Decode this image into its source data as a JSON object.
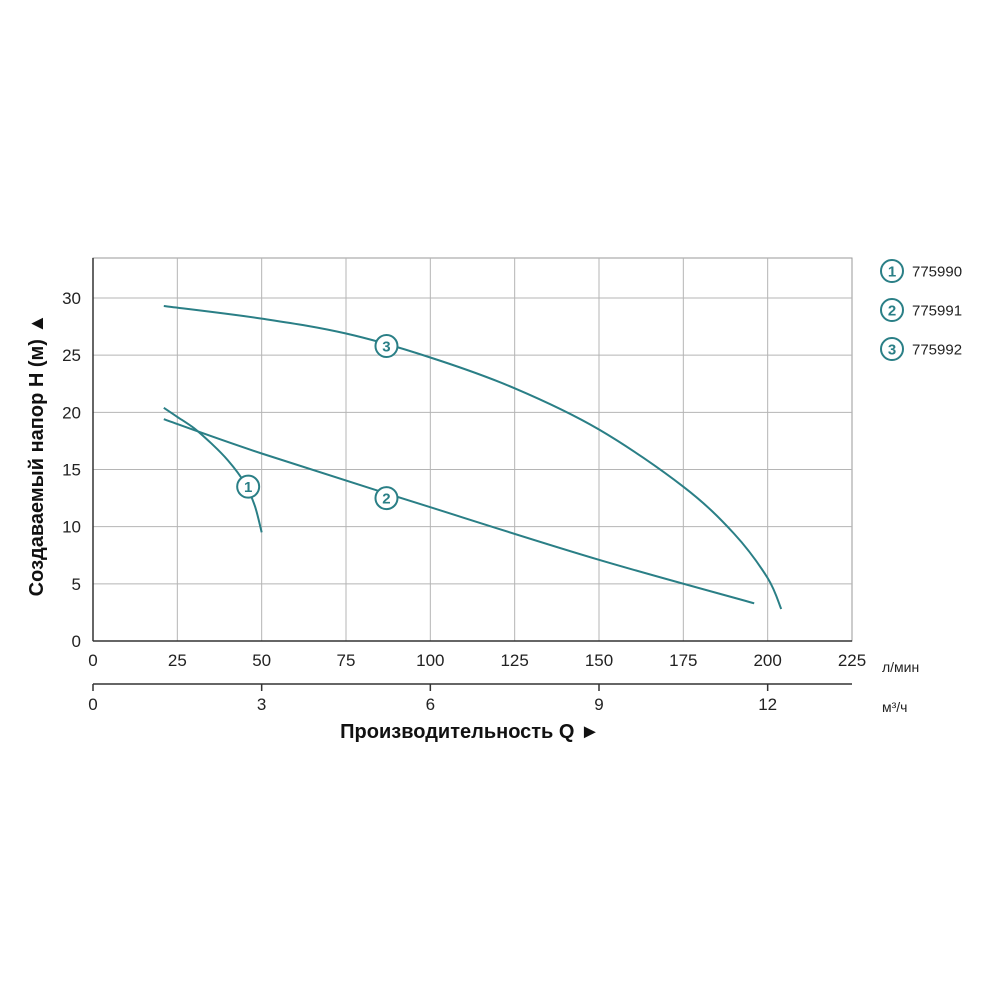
{
  "chart_data": {
    "type": "line",
    "ylabel": "Создаваемый напор H (м) ▲",
    "xlabel": "Производительность Q ►",
    "x_primary": {
      "unit": "л/мин",
      "range": [
        0,
        225
      ],
      "ticks": [
        0,
        25,
        50,
        75,
        100,
        125,
        150,
        175,
        200,
        225
      ]
    },
    "x_secondary": {
      "unit": "м³/ч",
      "range": [
        0,
        13.5
      ],
      "ticks": [
        0,
        3,
        6,
        9,
        12
      ]
    },
    "y": {
      "range": [
        0,
        33.5
      ],
      "ticks": [
        0,
        5,
        10,
        15,
        20,
        25,
        30
      ]
    },
    "grid": true,
    "legend_position": "right",
    "line_color": "#2a7f86",
    "series": [
      {
        "name": "775990",
        "marker": "1",
        "x": [
          21,
          25,
          30,
          35,
          40,
          45,
          48,
          50
        ],
        "y": [
          20.4,
          19.6,
          18.6,
          17.3,
          15.8,
          13.8,
          11.8,
          9.5
        ],
        "marker_at": [
          46,
          13.5
        ]
      },
      {
        "name": "775991",
        "marker": "2",
        "x": [
          21,
          50,
          100,
          150,
          196
        ],
        "y": [
          19.4,
          16.4,
          11.7,
          7.1,
          3.3
        ],
        "marker_at": [
          87,
          12.5
        ]
      },
      {
        "name": "775992",
        "marker": "3",
        "x": [
          21,
          50,
          75,
          100,
          125,
          150,
          175,
          190,
          200,
          204
        ],
        "y": [
          29.3,
          28.2,
          26.9,
          24.8,
          22.1,
          18.5,
          13.5,
          9.4,
          5.5,
          2.8
        ],
        "marker_at": [
          87,
          25.8
        ]
      }
    ]
  }
}
